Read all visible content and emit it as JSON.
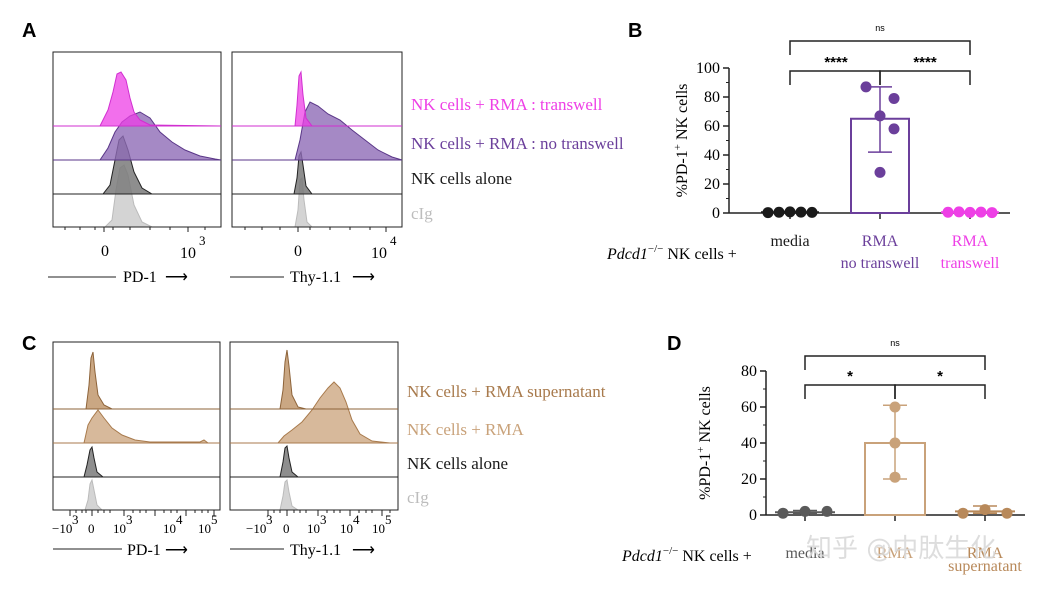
{
  "colors": {
    "magenta": "#ee3fe6",
    "purple": "#6b3f9b",
    "black": "#1a1a1a",
    "grey": "#bdbdbd",
    "tan": "#b8895a",
    "dark_grey": "#5a5a5a"
  },
  "panels": {
    "A": "A",
    "B": "B",
    "C": "C",
    "D": "D"
  },
  "panelA": {
    "legend": [
      "NK cells + RMA : transwell",
      "NK cells + RMA : no transwell",
      "NK cells alone",
      "cIg"
    ],
    "hist1": {
      "ticks": [
        "0",
        "10",
        "3"
      ],
      "xlabel": "PD-1"
    },
    "hist2": {
      "ticks": [
        "0",
        "10",
        "4"
      ],
      "xlabel": "Thy-1.1"
    },
    "arrow": "⟶"
  },
  "panelC": {
    "legend": [
      "NK cells + RMA supernatant",
      "NK cells + RMA",
      "NK cells alone",
      "cIg"
    ],
    "hist1": {
      "xlabel": "PD-1"
    },
    "hist2": {
      "xlabel": "Thy-1.1"
    },
    "ticks": {
      "neg_base": "−10",
      "neg_exp": "3",
      "zero": "0",
      "t3_base": "10",
      "t3_exp": "3",
      "t4_base": "10",
      "t4_exp": "4",
      "t5_base": "10",
      "t5_exp": "5"
    }
  },
  "prefix": {
    "B": {
      "gene": "Pdcd1",
      "sup": "−/−",
      "rest": " NK cells +"
    },
    "D": {
      "gene": "Pdcd1",
      "sup": "−/−",
      "rest": " NK cells +"
    }
  },
  "watermark": "知乎 @中肽生化",
  "chart_data": [
    {
      "id": "B",
      "type": "bar",
      "title": "",
      "ylabel_base": "%PD-1",
      "ylabel_sup": "+",
      "ylabel_rest": " NK cells",
      "ylim": [
        0,
        100
      ],
      "yticks": [
        0,
        20,
        40,
        60,
        80,
        100
      ],
      "categories": [
        {
          "line1": "media",
          "line2": "",
          "color": "#1a1a1a"
        },
        {
          "line1": "RMA",
          "line2": "no transwell",
          "color": "#6b3f9b"
        },
        {
          "line1": "RMA",
          "line2": "transwell",
          "color": "#ee3fe6"
        }
      ],
      "means": [
        0.5,
        65,
        0.5
      ],
      "error_low": [
        0,
        42,
        0
      ],
      "error_high": [
        1,
        87,
        1
      ],
      "points": [
        [
          0.3,
          0.5,
          0.8,
          0.6,
          0.4
        ],
        [
          87,
          79,
          67,
          58,
          28
        ],
        [
          0.5,
          0.8,
          0.4,
          0.6,
          0.3
        ]
      ],
      "comparisons": [
        {
          "from": 0,
          "to": 1,
          "label": "****"
        },
        {
          "from": 1,
          "to": 2,
          "label": "****"
        },
        {
          "from": 0,
          "to": 2,
          "label": "ns"
        }
      ]
    },
    {
      "id": "D",
      "type": "bar",
      "title": "",
      "ylabel_base": "%PD-1",
      "ylabel_sup": "+",
      "ylabel_rest": " NK cells",
      "ylim": [
        0,
        80
      ],
      "yticks": [
        0,
        20,
        40,
        60,
        80
      ],
      "categories": [
        {
          "line1": "media",
          "line2": "",
          "color": "#5a5a5a"
        },
        {
          "line1": "RMA",
          "line2": "",
          "color": "#c9a27a"
        },
        {
          "line1": "RMA",
          "line2": "supernatant",
          "color": "#b8895a"
        }
      ],
      "means": [
        1.5,
        40,
        2
      ],
      "error_low": [
        1,
        20,
        1
      ],
      "error_high": [
        2.5,
        61,
        5
      ],
      "points": [
        [
          1,
          2,
          2
        ],
        [
          60,
          40,
          21
        ],
        [
          1,
          3,
          1
        ]
      ],
      "comparisons": [
        {
          "from": 0,
          "to": 1,
          "label": "*"
        },
        {
          "from": 1,
          "to": 2,
          "label": "*"
        },
        {
          "from": 0,
          "to": 2,
          "label": "ns"
        }
      ]
    }
  ]
}
